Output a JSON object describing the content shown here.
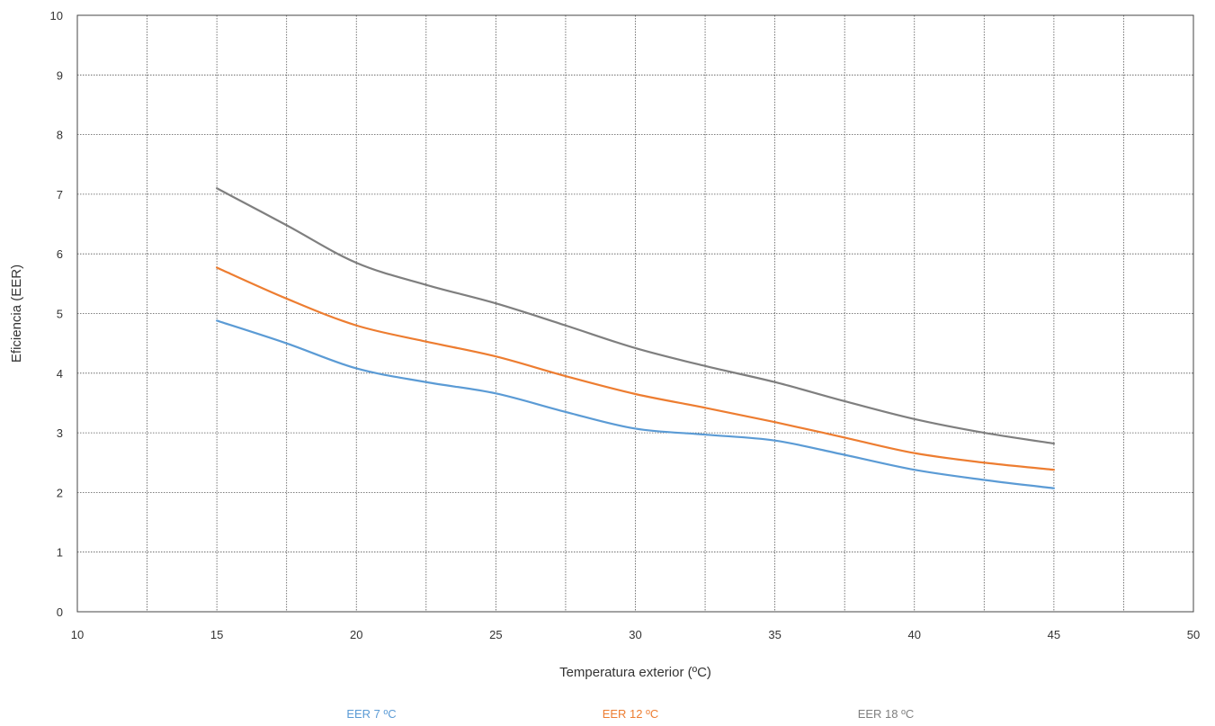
{
  "chart_data": {
    "type": "line",
    "title": "",
    "xlabel": "Temperatura exterior (ºC)",
    "ylabel": "Eficiencia (EER)",
    "xlim": [
      10,
      50
    ],
    "ylim": [
      0,
      10
    ],
    "x_ticks": [
      10,
      15,
      20,
      25,
      30,
      35,
      40,
      45,
      50
    ],
    "y_ticks": [
      0,
      1,
      2,
      3,
      4,
      5,
      6,
      7,
      8,
      9,
      10
    ],
    "grid": true,
    "legend_position": "bottom",
    "x": [
      15,
      17.5,
      20,
      22.5,
      25,
      27.5,
      30,
      32.5,
      35,
      37.5,
      40,
      42.5,
      45
    ],
    "series": [
      {
        "name": "EER 7 ºC",
        "color": "#5b9bd5",
        "values": [
          4.88,
          4.5,
          4.08,
          3.85,
          3.66,
          3.35,
          3.07,
          2.97,
          2.87,
          2.63,
          2.38,
          2.21,
          2.07
        ]
      },
      {
        "name": "EER 12 ºC",
        "color": "#ed7d31",
        "values": [
          5.77,
          5.25,
          4.8,
          4.53,
          4.28,
          3.95,
          3.65,
          3.42,
          3.18,
          2.92,
          2.66,
          2.5,
          2.38
        ]
      },
      {
        "name": "EER 18 ºC",
        "color": "#7f7f7f",
        "values": [
          7.1,
          6.48,
          5.85,
          5.48,
          5.17,
          4.8,
          4.42,
          4.12,
          3.85,
          3.53,
          3.23,
          3.0,
          2.82
        ]
      }
    ]
  }
}
